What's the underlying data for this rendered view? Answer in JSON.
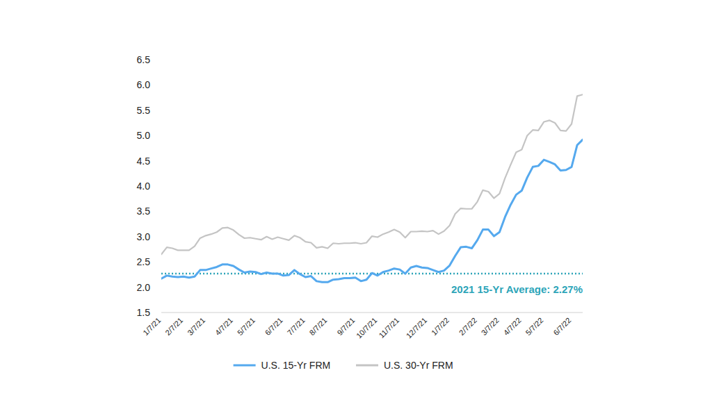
{
  "chart_data": {
    "type": "line",
    "categories": [
      "1/7/21",
      null,
      null,
      null,
      "2/7/21",
      null,
      null,
      null,
      "3/7/21",
      null,
      null,
      null,
      null,
      "4/7/21",
      null,
      null,
      null,
      "5/7/21",
      null,
      null,
      null,
      null,
      "6/7/21",
      null,
      null,
      null,
      "7/7/21",
      null,
      null,
      null,
      "8/7/21",
      null,
      null,
      null,
      null,
      "9/7/21",
      null,
      null,
      null,
      "10/7/21",
      null,
      null,
      null,
      "11/7/21",
      null,
      null,
      null,
      null,
      "12/7/21",
      null,
      null,
      null,
      "1/7/22",
      null,
      null,
      null,
      null,
      "2/7/22",
      null,
      null,
      null,
      "3/7/22",
      null,
      null,
      null,
      "4/7/22",
      null,
      null,
      null,
      "5/7/22",
      null,
      null,
      null,
      null,
      "6/7/22",
      null,
      null
    ],
    "series": [
      {
        "name": "U.S. 15-Yr FRM",
        "color": "#55a9ee",
        "values": [
          2.17,
          2.23,
          2.21,
          2.2,
          2.21,
          2.19,
          2.21,
          2.34,
          2.34,
          2.37,
          2.4,
          2.45,
          2.45,
          2.42,
          2.35,
          2.29,
          2.31,
          2.3,
          2.26,
          2.29,
          2.27,
          2.27,
          2.23,
          2.24,
          2.34,
          2.26,
          2.2,
          2.22,
          2.12,
          2.1,
          2.1,
          2.15,
          2.16,
          2.18,
          2.18,
          2.19,
          2.12,
          2.15,
          2.28,
          2.23,
          2.3,
          2.33,
          2.37,
          2.35,
          2.27,
          2.39,
          2.42,
          2.39,
          2.38,
          2.34,
          2.3,
          2.33,
          2.43,
          2.62,
          2.79,
          2.8,
          2.77,
          2.93,
          3.14,
          3.14,
          3.01,
          3.09,
          3.39,
          3.63,
          3.83,
          3.91,
          4.17,
          4.38,
          4.4,
          4.52,
          4.48,
          4.43,
          4.31,
          4.32,
          4.38,
          4.81,
          4.92
        ]
      },
      {
        "name": "U.S. 30-Yr FRM",
        "color": "#c4c4c4",
        "values": [
          2.65,
          2.79,
          2.77,
          2.73,
          2.73,
          2.73,
          2.81,
          2.97,
          3.02,
          3.05,
          3.09,
          3.17,
          3.18,
          3.13,
          3.04,
          2.97,
          2.98,
          2.96,
          2.94,
          3.0,
          2.95,
          2.99,
          2.96,
          2.93,
          3.02,
          2.98,
          2.9,
          2.88,
          2.78,
          2.8,
          2.77,
          2.87,
          2.86,
          2.87,
          2.87,
          2.88,
          2.86,
          2.88,
          3.01,
          2.99,
          3.05,
          3.09,
          3.14,
          3.09,
          2.98,
          3.1,
          3.1,
          3.11,
          3.1,
          3.12,
          3.05,
          3.11,
          3.22,
          3.45,
          3.56,
          3.55,
          3.55,
          3.69,
          3.92,
          3.89,
          3.76,
          3.85,
          4.16,
          4.42,
          4.67,
          4.72,
          5.0,
          5.11,
          5.1,
          5.27,
          5.3,
          5.25,
          5.1,
          5.09,
          5.23,
          5.78,
          5.81
        ]
      }
    ],
    "ylim": [
      1.5,
      6.5
    ],
    "yticks": [
      1.5,
      {
        "value": 2,
        "label": "2.0"
      },
      2.5,
      {
        "value": 3,
        "label": "3.0"
      },
      3.5,
      {
        "value": 4,
        "label": "4.0"
      },
      4.5,
      {
        "value": 5,
        "label": "5.0"
      },
      5.5,
      {
        "value": 6,
        "label": "6.0"
      },
      6.5
    ],
    "grid": false,
    "legend": "bottom",
    "reference_line": {
      "value": 2.27,
      "label": "2021 15-Yr Average: 2.27%",
      "color": "#2ea5b9"
    }
  }
}
